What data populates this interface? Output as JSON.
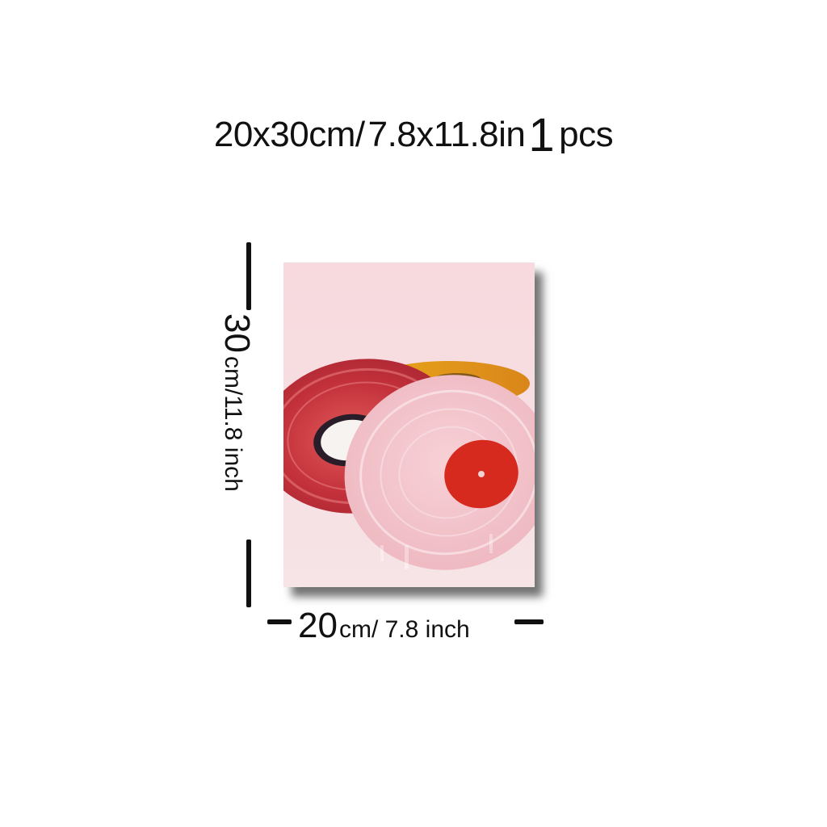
{
  "headline": {
    "size_cm": "20x30cm/",
    "size_in": "7.8x11.8in",
    "quantity": "1",
    "quantity_unit": "pcs"
  },
  "dimensions": {
    "height_value": "30",
    "height_unit": "cm/11.8 inch",
    "width_value": "20",
    "width_unit": "cm/ 7.8 inch"
  },
  "poster": {
    "subject": "vinyl-records-painting",
    "colors": {
      "background": "#f5dce1",
      "red_record": "#c8323a",
      "yellow_record": "#e7a11a",
      "pink_record": "#f2c4cb",
      "label_red": "#d62a1e",
      "label_white": "#f7f3f1"
    }
  }
}
